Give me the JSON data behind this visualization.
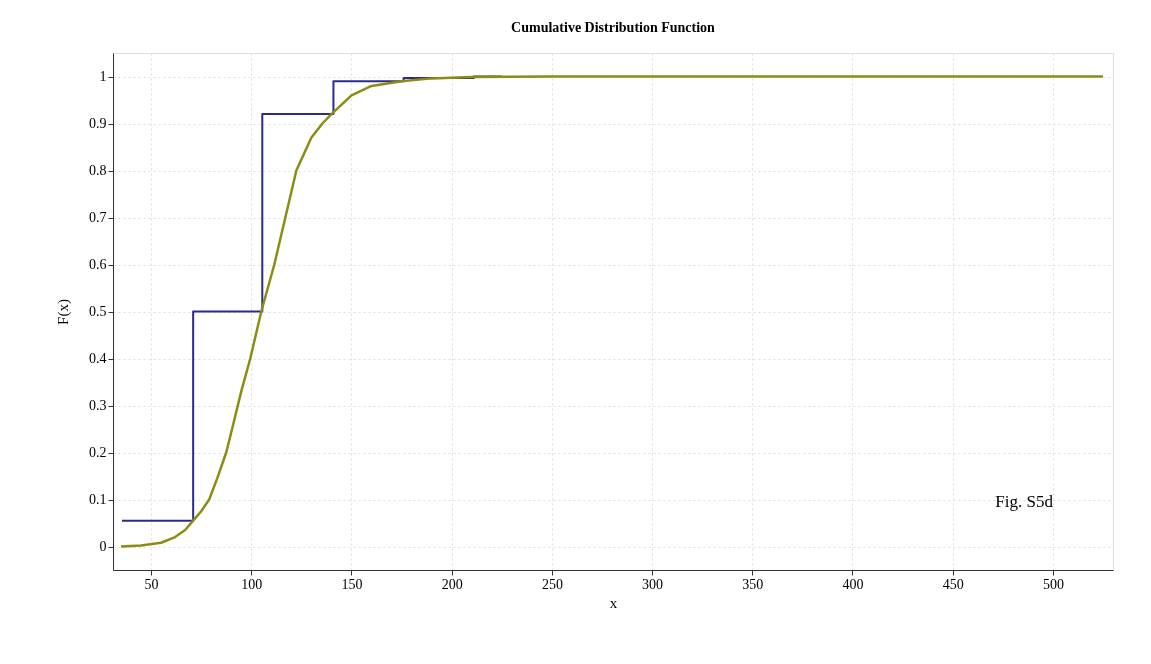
{
  "chart_data": {
    "type": "line",
    "title": "Cumulative Distribution Function",
    "xlabel": "x",
    "ylabel": "F(x)",
    "xlim": [
      31,
      530
    ],
    "ylim": [
      -0.05,
      1.05
    ],
    "xticks": [
      50,
      100,
      150,
      200,
      250,
      300,
      350,
      400,
      450,
      500
    ],
    "yticks": [
      0,
      0.1,
      0.2,
      0.3,
      0.4,
      0.5,
      0.6,
      0.7,
      0.8,
      0.9,
      1
    ],
    "grid": true,
    "annotations": [
      "Fig. S5d"
    ],
    "series": [
      {
        "type": "step",
        "color": "#2b2b8f",
        "x": [
          35.5,
          71,
          105.5,
          141,
          176,
          211,
          225
        ],
        "values": [
          0.055,
          0.5,
          0.92,
          0.99,
          0.997,
          1,
          1
        ]
      },
      {
        "color": "#8c8c14",
        "x": [
          35,
          45,
          55,
          62,
          67,
          71,
          75,
          79,
          83,
          87.5,
          91,
          95,
          99.5,
          105,
          111.5,
          117,
          122.5,
          130,
          135.5,
          140,
          150,
          160,
          175,
          190,
          210,
          250,
          525
        ],
        "values": [
          0,
          0.002,
          0.008,
          0.02,
          0.035,
          0.055,
          0.075,
          0.1,
          0.145,
          0.2,
          0.26,
          0.33,
          0.4,
          0.5,
          0.6,
          0.7,
          0.8,
          0.87,
          0.9,
          0.92,
          0.96,
          0.98,
          0.99,
          0.996,
          0.999,
          1,
          1
        ]
      }
    ]
  }
}
